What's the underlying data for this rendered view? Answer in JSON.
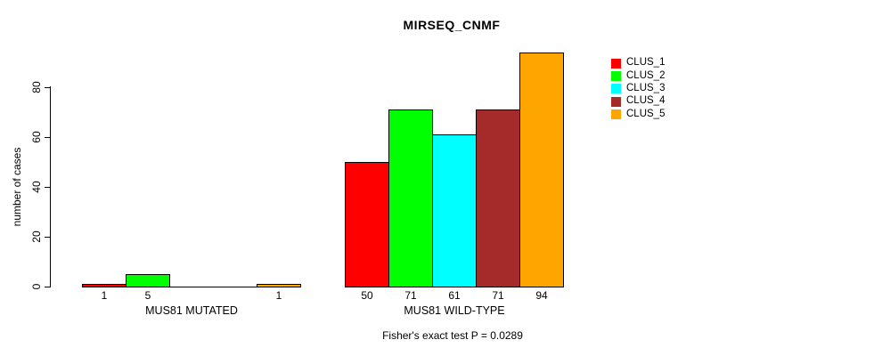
{
  "chart_data": {
    "type": "bar",
    "title": "MIRSEQ_CNMF",
    "ylabel": "number of cases",
    "xlabel": "",
    "categories": [
      "MUS81 MUTATED",
      "MUS81 WILD-TYPE"
    ],
    "series": [
      {
        "name": "CLUS_1",
        "color": "#ff0000",
        "values": [
          1,
          50
        ]
      },
      {
        "name": "CLUS_2",
        "color": "#00ff00",
        "values": [
          5,
          71
        ]
      },
      {
        "name": "CLUS_3",
        "color": "#00ffff",
        "values": [
          0,
          61
        ]
      },
      {
        "name": "CLUS_4",
        "color": "#a52a2a",
        "values": [
          0,
          71
        ]
      },
      {
        "name": "CLUS_5",
        "color": "#ffa500",
        "values": [
          1,
          94
        ]
      }
    ],
    "value_labels": [
      [
        "1",
        "5",
        "",
        "",
        "1"
      ],
      [
        "50",
        "71",
        "61",
        "71",
        "94"
      ]
    ],
    "yticks": [
      0,
      20,
      40,
      60,
      80
    ],
    "ylim": [
      0,
      95
    ],
    "grid": false,
    "legend": {
      "position": "top-right",
      "entries": [
        "CLUS_1",
        "CLUS_2",
        "CLUS_3",
        "CLUS_4",
        "CLUS_5"
      ]
    },
    "footnote": "Fisher's exact test P = 0.0289"
  }
}
